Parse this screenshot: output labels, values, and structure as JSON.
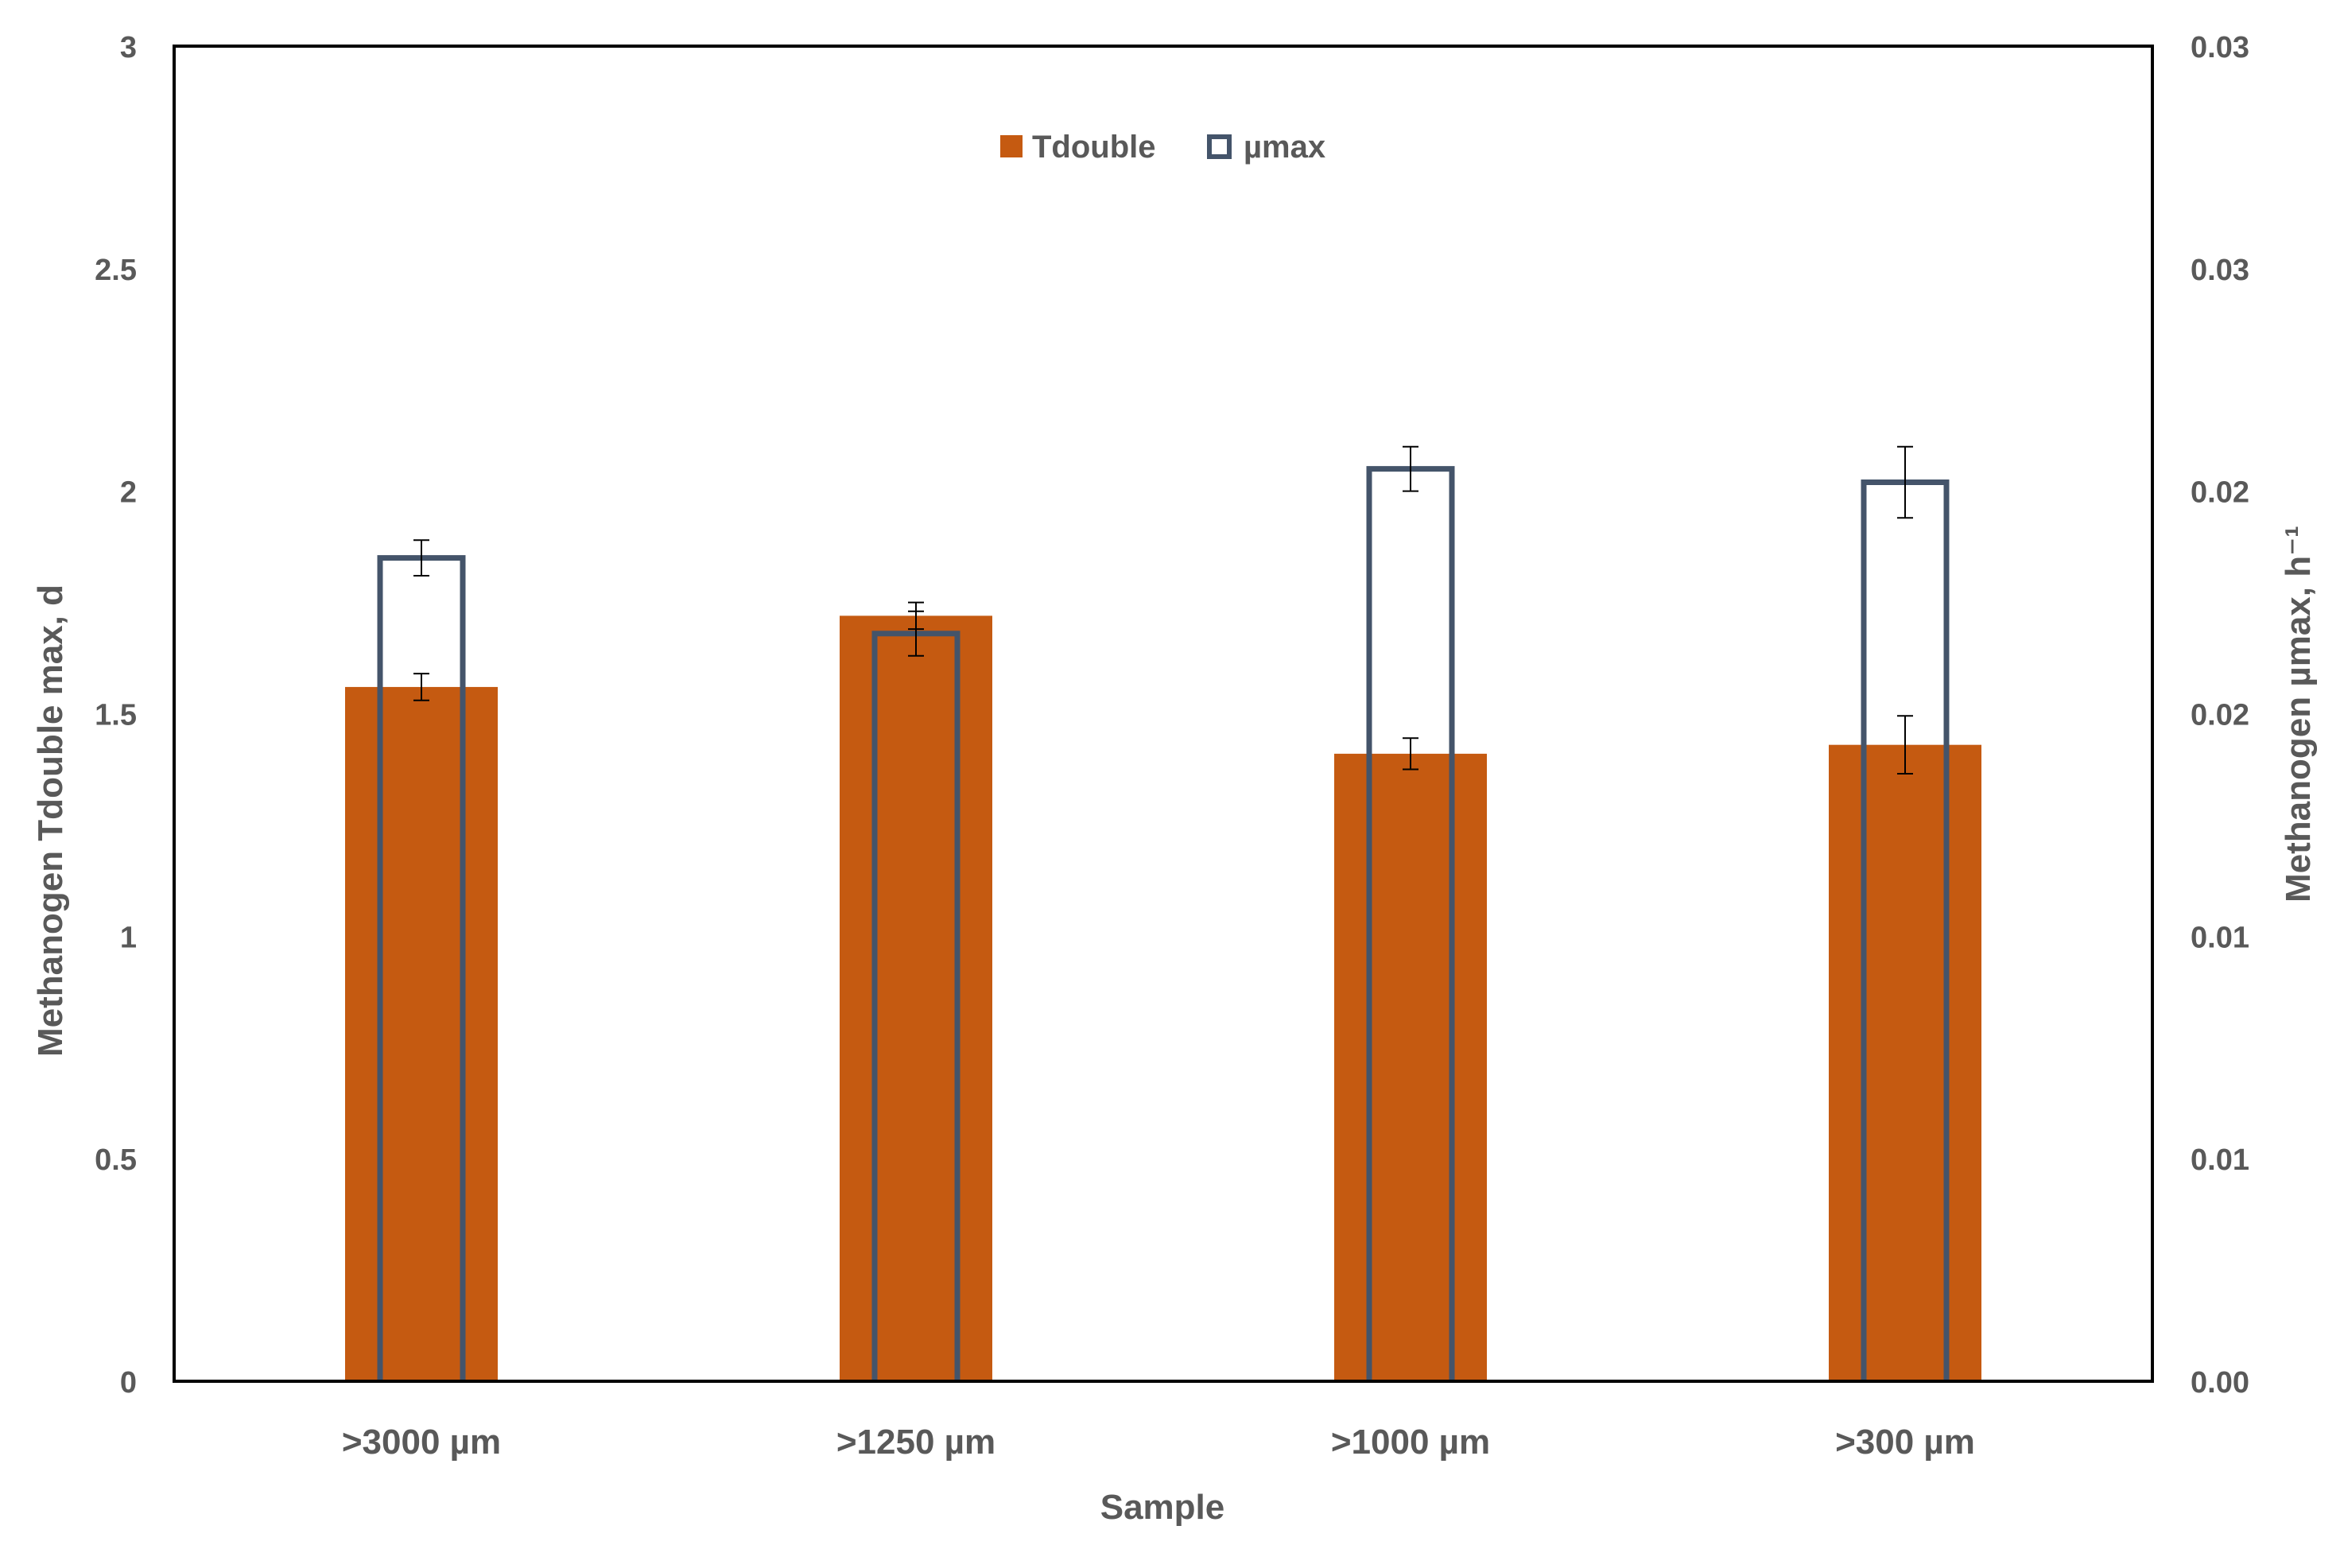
{
  "chart_data": {
    "type": "bar",
    "categories": [
      ">3000 µm",
      ">1250 µm",
      ">1000 µm",
      ">300 µm"
    ],
    "xlabel": "Sample",
    "ylabel_left": "Methanogen Tdouble max, d",
    "ylabel_right": "Methanogen µmax, h⁻¹",
    "ylim_left": [
      0,
      3
    ],
    "ylim_right": [
      0,
      0.03
    ],
    "left_ticks": [
      {
        "value": 0,
        "label": "0"
      },
      {
        "value": 0.5,
        "label": "0.5"
      },
      {
        "value": 1,
        "label": "1"
      },
      {
        "value": 1.5,
        "label": "1.5"
      },
      {
        "value": 2,
        "label": "2"
      },
      {
        "value": 2.5,
        "label": "2.5"
      },
      {
        "value": 3,
        "label": "3"
      }
    ],
    "right_ticks": [
      {
        "value": 0,
        "label": "0.00"
      },
      {
        "value": 0.005,
        "label": "0.01"
      },
      {
        "value": 0.01,
        "label": "0.01"
      },
      {
        "value": 0.015,
        "label": "0.02"
      },
      {
        "value": 0.02,
        "label": "0.02"
      },
      {
        "value": 0.025,
        "label": "0.03"
      },
      {
        "value": 0.03,
        "label": "0.03"
      }
    ],
    "legend_position": "top-center",
    "grid": false,
    "series": [
      {
        "name": "Tdouble",
        "axis": "left",
        "style": "filled",
        "color": "#C55A11",
        "values": [
          1.56,
          1.72,
          1.41,
          1.43
        ],
        "errors": [
          0.03,
          0.03,
          0.035,
          0.065
        ]
      },
      {
        "name": "µmax",
        "axis": "right",
        "style": "outline",
        "color": "#44546A",
        "values": [
          0.0185,
          0.0168,
          0.0205,
          0.0202
        ],
        "errors": [
          0.0004,
          0.0005,
          0.0005,
          0.0008
        ]
      }
    ]
  }
}
